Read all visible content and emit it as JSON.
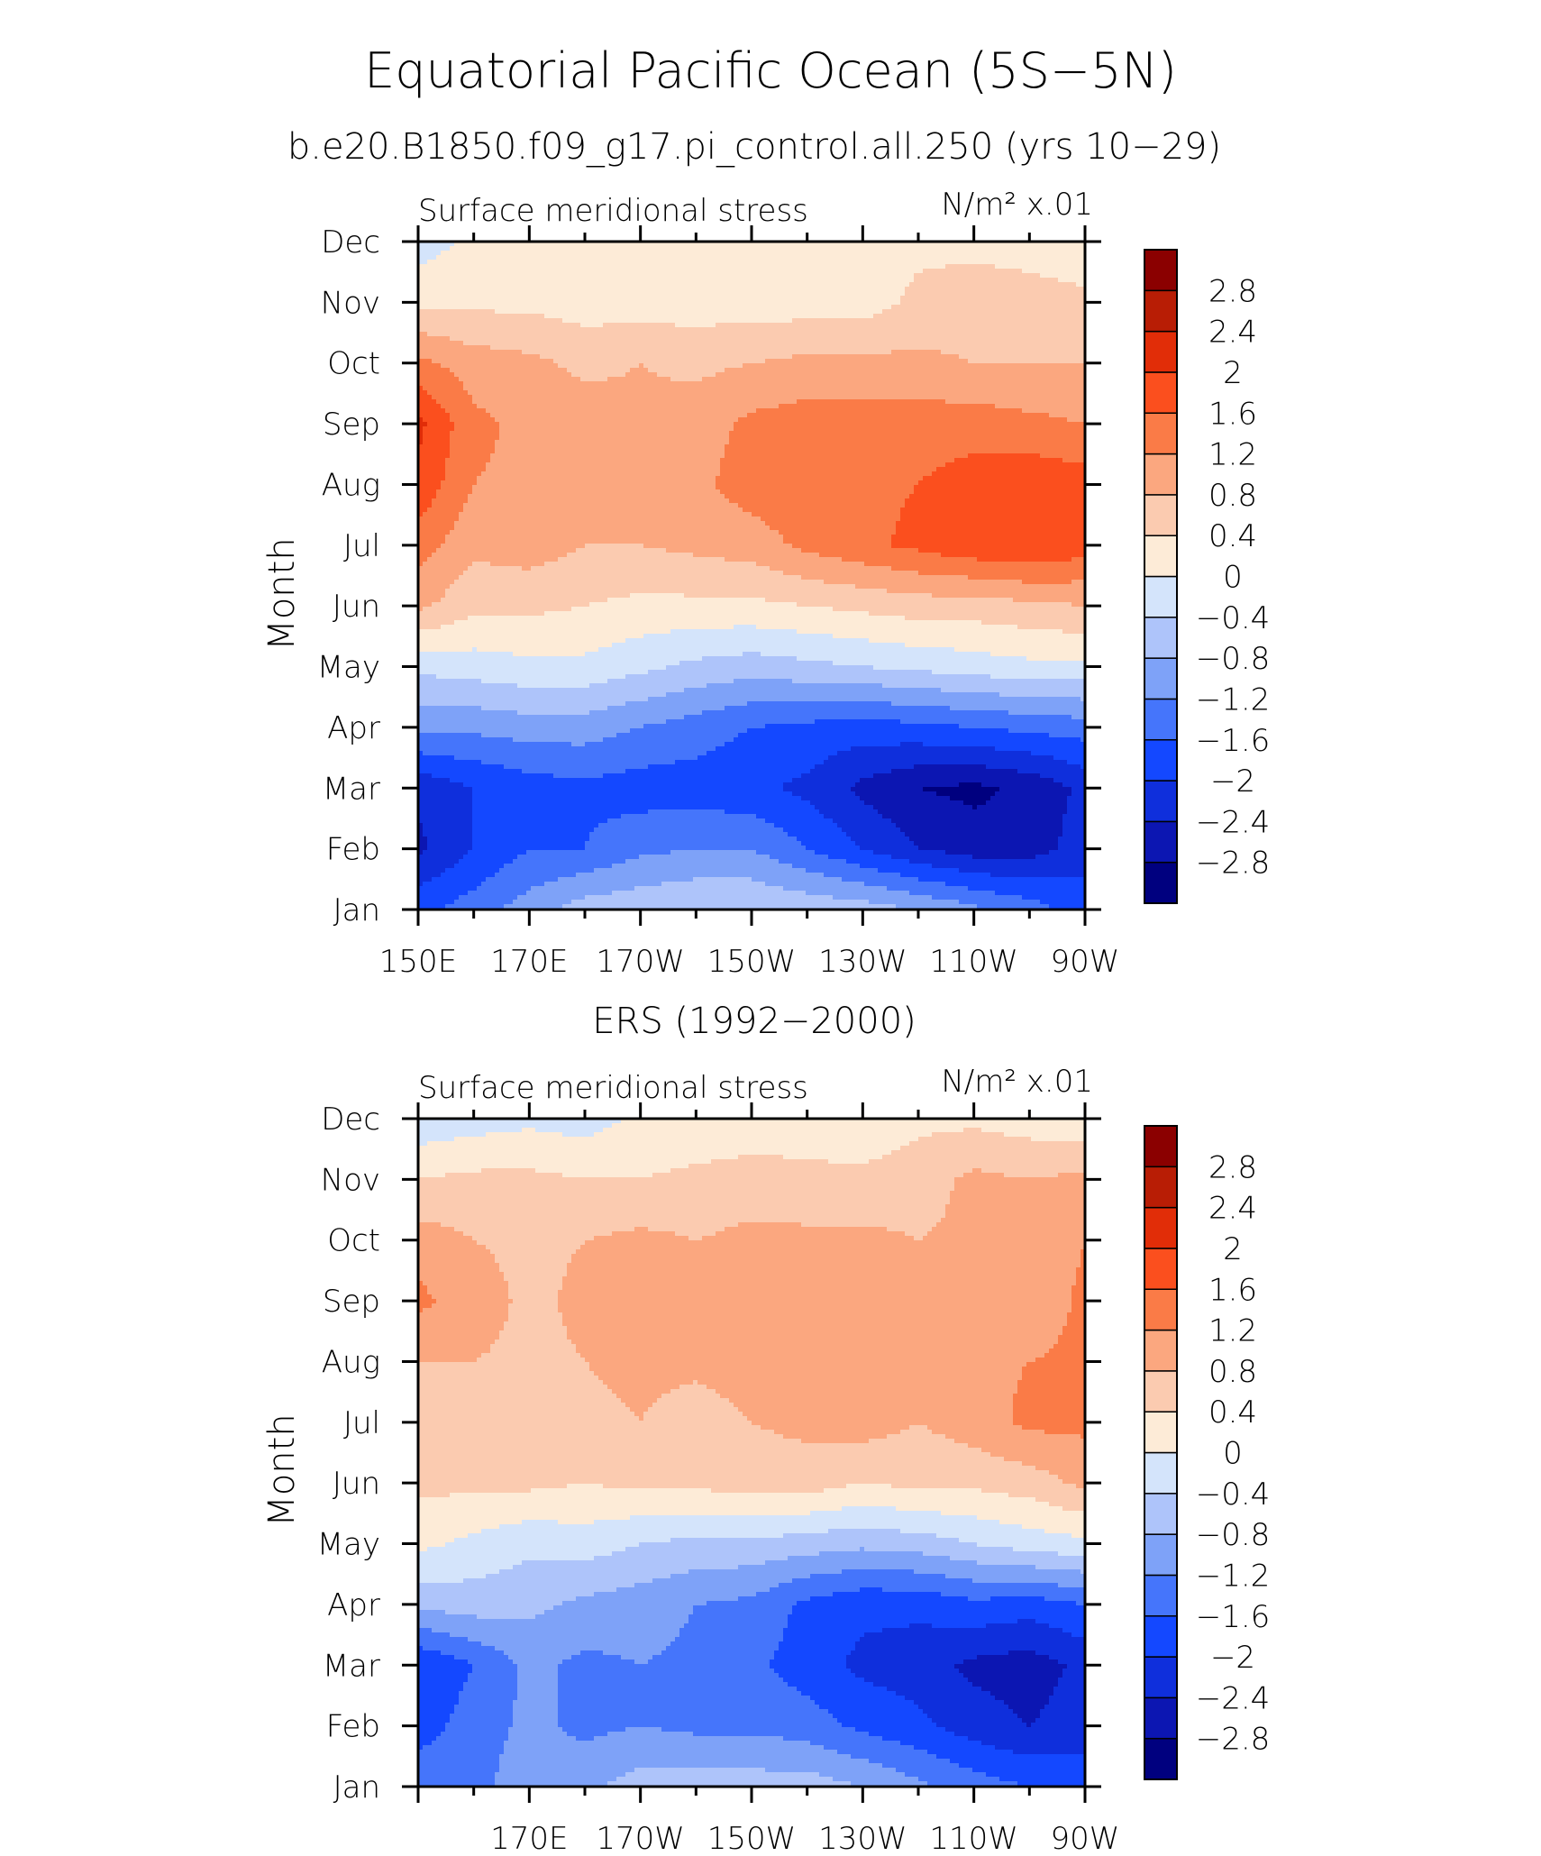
{
  "figure": {
    "title": "Equatorial Pacific Ocean (5S−5N)"
  },
  "colors": [
    "#00007f",
    "#0c16b2",
    "#0f2fdc",
    "#1448ff",
    "#4575fb",
    "#7ea2f8",
    "#aec4fa",
    "#d4e4fb",
    "#fdebd7",
    "#fbcbb0",
    "#fba77f",
    "#fa7b47",
    "#fb4f1e",
    "#e12d08",
    "#b81d05",
    "#8b0000"
  ],
  "colorbar_labels": [
    "2.8",
    "2.4",
    "2",
    "1.6",
    "1.2",
    "0.8",
    "0.4",
    "0",
    "−0.4",
    "−0.8",
    "−1.2",
    "−1.6",
    "−2",
    "−2.4",
    "−2.8"
  ],
  "chart_data": [
    {
      "type": "heatmap",
      "title": "b.e20.B1850.f09_g17.pi_control.all.250 (yrs 10−29)",
      "left_label": "Surface meridional stress",
      "right_label": "N/m² x.01",
      "ylabel": "Month",
      "x_tick_labels": [
        "150E",
        "170E",
        "170W",
        "150W",
        "130W",
        "110W",
        "90W"
      ],
      "y_tick_labels": [
        "Jan",
        "Feb",
        "Mar",
        "Apr",
        "May",
        "Jun",
        "Jul",
        "Aug",
        "Sep",
        "Oct",
        "Nov",
        "Dec"
      ],
      "xlim": [
        150,
        270
      ],
      "levels": [
        -2.8,
        -2.4,
        -2.0,
        -1.6,
        -1.2,
        -0.8,
        -0.4,
        0,
        0.4,
        0.8,
        1.2,
        1.6,
        2.0,
        2.4,
        2.8
      ],
      "lon": [
        150,
        160,
        170,
        180,
        190,
        200,
        210,
        220,
        230,
        240,
        250,
        260,
        270
      ],
      "values": [
        [
          -1.7,
          -1.4,
          -1.0,
          -0.6,
          -0.5,
          -0.4,
          -0.4,
          -0.5,
          -0.6,
          -0.8,
          -1.1,
          -1.4,
          -1.8
        ],
        [
          -2.5,
          -2.0,
          -1.6,
          -1.6,
          -1.3,
          -1.2,
          -1.2,
          -1.6,
          -2.0,
          -2.4,
          -2.6,
          -2.6,
          -2.2
        ],
        [
          -2.3,
          -2.0,
          -1.8,
          -1.7,
          -1.8,
          -1.8,
          -1.9,
          -2.1,
          -2.5,
          -2.8,
          -2.9,
          -2.7,
          -2.3
        ],
        [
          -1.1,
          -1.1,
          -1.0,
          -1.0,
          -1.2,
          -1.4,
          -1.6,
          -1.7,
          -1.8,
          -1.7,
          -1.6,
          -1.5,
          -1.4
        ],
        [
          -0.3,
          -0.2,
          -0.1,
          -0.1,
          -0.3,
          -0.5,
          -0.6,
          -0.5,
          -0.4,
          -0.3,
          -0.2,
          -0.1,
          -0.1
        ],
        [
          0.9,
          0.5,
          0.5,
          0.4,
          0.3,
          0.3,
          0.3,
          0.4,
          0.5,
          0.6,
          0.6,
          0.7,
          0.8
        ],
        [
          1.4,
          0.9,
          1.0,
          0.8,
          0.8,
          0.9,
          1.0,
          1.3,
          1.5,
          1.7,
          1.9,
          2.0,
          1.8
        ],
        [
          1.9,
          1.2,
          1.1,
          1.1,
          1.0,
          1.1,
          1.4,
          1.5,
          1.5,
          1.6,
          1.8,
          1.9,
          1.8
        ],
        [
          2.1,
          1.3,
          1.1,
          1.0,
          0.9,
          1.0,
          1.3,
          1.4,
          1.4,
          1.4,
          1.4,
          1.3,
          1.2
        ],
        [
          1.3,
          1.0,
          0.9,
          0.7,
          0.8,
          0.7,
          0.8,
          0.9,
          0.9,
          0.9,
          0.8,
          0.8,
          0.8
        ],
        [
          0.3,
          0.3,
          0.3,
          0.2,
          0.2,
          0.2,
          0.2,
          0.2,
          0.2,
          0.5,
          0.6,
          0.6,
          0.5
        ],
        [
          -0.2,
          0.1,
          0.2,
          0.2,
          0.2,
          0.2,
          0.2,
          0.2,
          0.2,
          0.3,
          0.3,
          0.2,
          0.1
        ]
      ]
    },
    {
      "type": "heatmap",
      "title": "ERS (1992−2000)",
      "left_label": "Surface meridional stress",
      "right_label": "N/m² x.01",
      "ylabel": "Month",
      "x_tick_labels": [
        "170E",
        "170W",
        "150W",
        "130W",
        "110W",
        "90W"
      ],
      "y_tick_labels": [
        "Jan",
        "Feb",
        "Mar",
        "Apr",
        "May",
        "Jun",
        "Jul",
        "Aug",
        "Sep",
        "Oct",
        "Nov",
        "Dec"
      ],
      "xlim": [
        150,
        270
      ],
      "levels": [
        -2.8,
        -2.4,
        -2.0,
        -1.6,
        -1.2,
        -0.8,
        -0.4,
        0,
        0.4,
        0.8,
        1.2,
        1.6,
        2.0,
        2.4,
        2.8
      ],
      "lon": [
        150,
        160,
        170,
        180,
        190,
        200,
        210,
        220,
        230,
        240,
        250,
        260,
        270
      ],
      "values": [
        [
          -1.3,
          -1.3,
          -1.0,
          -0.9,
          -0.6,
          -0.6,
          -0.6,
          -0.6,
          -0.8,
          -1.1,
          -1.4,
          -1.6,
          -1.8
        ],
        [
          -1.8,
          -1.4,
          -1.1,
          -1.3,
          -1.2,
          -1.3,
          -1.3,
          -1.4,
          -1.7,
          -1.9,
          -2.2,
          -2.4,
          -2.2
        ],
        [
          -2.0,
          -1.6,
          -1.1,
          -1.3,
          -1.2,
          -1.3,
          -1.5,
          -1.8,
          -2.1,
          -2.2,
          -2.5,
          -2.6,
          -2.3
        ],
        [
          -0.7,
          -0.6,
          -0.7,
          -0.9,
          -1.0,
          -1.2,
          -1.3,
          -1.7,
          -1.9,
          -1.9,
          -1.7,
          -1.8,
          -1.6
        ],
        [
          0.1,
          -0.1,
          -0.3,
          -0.2,
          -0.4,
          -0.5,
          -0.5,
          -0.6,
          -0.7,
          -0.6,
          -0.4,
          -0.2,
          -0.1
        ],
        [
          0.5,
          0.5,
          0.5,
          0.4,
          0.5,
          0.5,
          0.6,
          0.6,
          0.4,
          0.5,
          0.5,
          0.6,
          0.9
        ],
        [
          0.7,
          0.8,
          0.7,
          0.7,
          0.8,
          0.6,
          0.8,
          0.9,
          1.0,
          0.8,
          1.0,
          1.3,
          1.3
        ],
        [
          0.8,
          0.8,
          0.7,
          0.8,
          0.9,
          0.9,
          1.0,
          1.0,
          1.0,
          0.9,
          1.1,
          1.2,
          1.3
        ],
        [
          1.3,
          1.0,
          0.7,
          0.9,
          0.9,
          1.0,
          1.0,
          1.0,
          0.9,
          0.8,
          0.8,
          0.9,
          1.3
        ],
        [
          1.0,
          0.8,
          0.7,
          0.8,
          0.9,
          0.8,
          0.9,
          0.9,
          0.9,
          0.8,
          0.9,
          0.9,
          1.2
        ],
        [
          0.4,
          0.5,
          0.5,
          0.4,
          0.4,
          0.5,
          0.6,
          0.5,
          0.5,
          0.6,
          0.9,
          0.8,
          0.9
        ],
        [
          -0.3,
          -0.2,
          -0.1,
          -0.2,
          0.1,
          0.1,
          0.1,
          0.2,
          0.1,
          0.3,
          0.3,
          0.2,
          0.1
        ]
      ]
    }
  ]
}
